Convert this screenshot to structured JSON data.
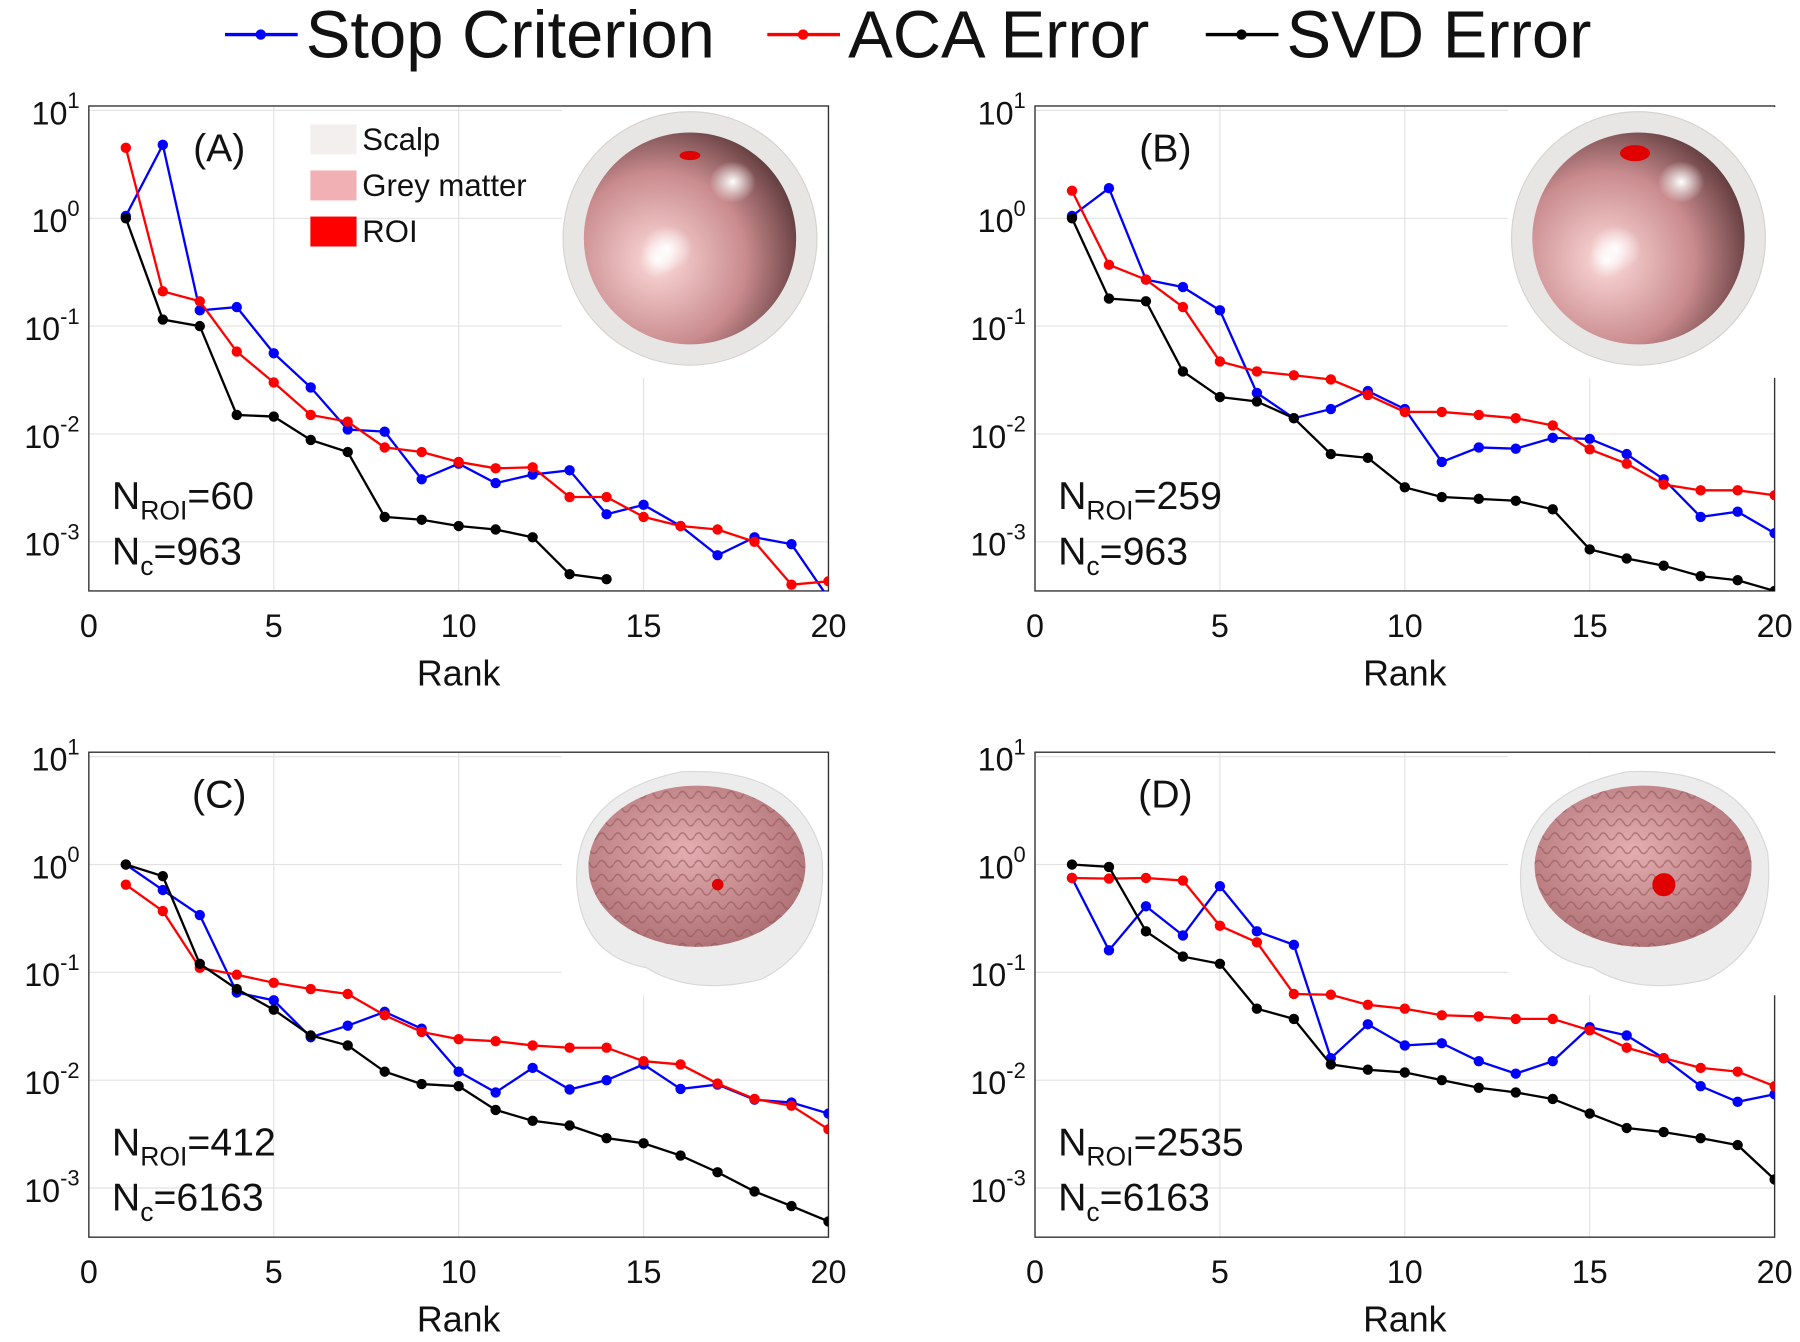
{
  "legend": [
    {
      "name": "Stop Criterion",
      "color": "#0000ff"
    },
    {
      "name": "ACA Error",
      "color": "#ff0000"
    },
    {
      "name": "SVD Error",
      "color": "#000000"
    }
  ],
  "chart_data": [
    {
      "type": "line",
      "log_y": true,
      "grid": true,
      "label": "(A)",
      "xlabel": "Rank",
      "n_roi": {
        "symbol": "N",
        "subscript": "ROI",
        "rest": "=60"
      },
      "n_c": {
        "symbol": "N",
        "subscript": "c",
        "rest": "=963"
      },
      "inset_legend": [
        {
          "name": "Scalp",
          "color": "#f2efee"
        },
        {
          "name": "Grey matter",
          "color": "#f0b0b4"
        },
        {
          "name": "ROI",
          "color": "#ff0000"
        }
      ],
      "x": [
        1,
        2,
        3,
        4,
        5,
        6,
        7,
        8,
        9,
        10,
        11,
        12,
        13,
        14,
        15,
        16,
        17,
        18,
        19,
        20
      ],
      "xlim": [
        0,
        20
      ],
      "xticks": [
        0,
        5,
        10,
        15,
        20
      ],
      "ylim": [
        0.00035,
        11
      ],
      "yticks": [
        {
          "value": 0.001,
          "label": "10",
          "exponent": "-3"
        },
        {
          "value": 0.01,
          "label": "10",
          "exponent": "-2"
        },
        {
          "value": 0.1,
          "label": "10",
          "exponent": "-1"
        },
        {
          "value": 1,
          "label": "10",
          "exponent": "0"
        },
        {
          "value": 10,
          "label": "10",
          "exponent": "1"
        }
      ],
      "series": [
        {
          "values": [
            1.05,
            4.8,
            0.14,
            0.15,
            0.056,
            0.027,
            0.011,
            0.0105,
            0.0038,
            0.0053,
            0.0035,
            0.0042,
            0.0046,
            0.0018,
            0.0022,
            0.0014,
            0.00075,
            0.0011,
            0.00095,
            0.0003
          ]
        },
        {
          "values": [
            4.5,
            0.21,
            0.17,
            0.058,
            0.03,
            0.015,
            0.013,
            0.0075,
            0.0068,
            0.0055,
            0.0048,
            0.0049,
            0.0026,
            0.0026,
            0.0017,
            0.0014,
            0.0013,
            0.001,
            0.0004,
            0.00043
          ]
        },
        {
          "values": [
            1.0,
            0.115,
            0.1,
            0.015,
            0.0145,
            0.0088,
            0.0068,
            0.0017,
            0.0016,
            0.0014,
            0.0013,
            0.0011,
            0.0005,
            0.00045,
            null,
            null,
            null,
            null,
            null,
            null
          ]
        }
      ]
    },
    {
      "type": "line",
      "log_y": true,
      "grid": true,
      "label": "(B)",
      "xlabel": "Rank",
      "n_roi": {
        "symbol": "N",
        "subscript": "ROI",
        "rest": "=259"
      },
      "n_c": {
        "symbol": "N",
        "subscript": "c",
        "rest": "=963"
      },
      "x": [
        1,
        2,
        3,
        4,
        5,
        6,
        7,
        8,
        9,
        10,
        11,
        12,
        13,
        14,
        15,
        16,
        17,
        18,
        19,
        20
      ],
      "xlim": [
        0,
        20
      ],
      "xticks": [
        0,
        5,
        10,
        15,
        20
      ],
      "ylim": [
        0.00035,
        11
      ],
      "yticks": [
        {
          "value": 0.001,
          "label": "10",
          "exponent": "-3"
        },
        {
          "value": 0.01,
          "label": "10",
          "exponent": "-2"
        },
        {
          "value": 0.1,
          "label": "10",
          "exponent": "-1"
        },
        {
          "value": 1,
          "label": "10",
          "exponent": "0"
        },
        {
          "value": 10,
          "label": "10",
          "exponent": "1"
        }
      ],
      "series": [
        {
          "values": [
            1.05,
            1.9,
            0.27,
            0.23,
            0.14,
            0.024,
            0.014,
            0.017,
            0.025,
            0.017,
            0.0055,
            0.0075,
            0.0073,
            0.0092,
            0.009,
            0.0065,
            0.0038,
            0.0017,
            0.0019,
            0.0012
          ]
        },
        {
          "values": [
            1.8,
            0.37,
            0.27,
            0.15,
            0.047,
            0.038,
            0.035,
            0.032,
            0.023,
            0.016,
            0.016,
            0.015,
            0.014,
            0.012,
            0.0072,
            0.0053,
            0.0034,
            0.003,
            0.003,
            0.0027
          ]
        },
        {
          "values": [
            1.0,
            0.18,
            0.17,
            0.038,
            0.022,
            0.02,
            0.014,
            0.0065,
            0.006,
            0.0032,
            0.0026,
            0.0025,
            0.0024,
            0.002,
            0.00085,
            0.0007,
            0.0006,
            0.00048,
            0.00044,
            0.00035
          ]
        }
      ]
    },
    {
      "type": "line",
      "log_y": true,
      "grid": true,
      "label": "(C)",
      "xlabel": "Rank",
      "n_roi": {
        "symbol": "N",
        "subscript": "ROI",
        "rest": "=412"
      },
      "n_c": {
        "symbol": "N",
        "subscript": "c",
        "rest": "=6163"
      },
      "x": [
        1,
        2,
        3,
        4,
        5,
        6,
        7,
        8,
        9,
        10,
        11,
        12,
        13,
        14,
        15,
        16,
        17,
        18,
        19,
        20
      ],
      "xlim": [
        0,
        20
      ],
      "xticks": [
        0,
        5,
        10,
        15,
        20
      ],
      "ylim": [
        0.00035,
        11
      ],
      "yticks": [
        {
          "value": 0.001,
          "label": "10",
          "exponent": "-3"
        },
        {
          "value": 0.01,
          "label": "10",
          "exponent": "-2"
        },
        {
          "value": 0.1,
          "label": "10",
          "exponent": "-1"
        },
        {
          "value": 1,
          "label": "10",
          "exponent": "0"
        },
        {
          "value": 10,
          "label": "10",
          "exponent": "1"
        }
      ],
      "series": [
        {
          "values": [
            1.0,
            0.58,
            0.34,
            0.065,
            0.055,
            0.025,
            0.032,
            0.043,
            0.03,
            0.012,
            0.0077,
            0.013,
            0.0082,
            0.01,
            0.014,
            0.0083,
            0.0091,
            0.0066,
            0.0062,
            0.0049
          ]
        },
        {
          "values": [
            0.65,
            0.37,
            0.11,
            0.095,
            0.08,
            0.07,
            0.063,
            0.04,
            0.028,
            0.024,
            0.023,
            0.021,
            0.02,
            0.02,
            0.015,
            0.014,
            0.0093,
            0.0067,
            0.0058,
            0.0035
          ]
        },
        {
          "values": [
            1.0,
            0.78,
            0.12,
            0.07,
            0.045,
            0.026,
            0.021,
            0.012,
            0.0092,
            0.0088,
            0.0053,
            0.0042,
            0.0038,
            0.0029,
            0.0026,
            0.002,
            0.0014,
            0.00093,
            0.00068,
            0.00049
          ]
        }
      ]
    },
    {
      "type": "line",
      "log_y": true,
      "grid": true,
      "label": "(D)",
      "xlabel": "Rank",
      "n_roi": {
        "symbol": "N",
        "subscript": "ROI",
        "rest": "=2535"
      },
      "n_c": {
        "symbol": "N",
        "subscript": "c",
        "rest": "=6163"
      },
      "x": [
        1,
        2,
        3,
        4,
        5,
        6,
        7,
        8,
        9,
        10,
        11,
        12,
        13,
        14,
        15,
        16,
        17,
        18,
        19,
        20
      ],
      "xlim": [
        0,
        20
      ],
      "xticks": [
        0,
        5,
        10,
        15,
        20
      ],
      "ylim": [
        0.00035,
        11
      ],
      "yticks": [
        {
          "value": 0.001,
          "label": "10",
          "exponent": "-3"
        },
        {
          "value": 0.01,
          "label": "10",
          "exponent": "-2"
        },
        {
          "value": 0.1,
          "label": "10",
          "exponent": "-1"
        },
        {
          "value": 1,
          "label": "10",
          "exponent": "0"
        },
        {
          "value": 10,
          "label": "10",
          "exponent": "1"
        }
      ],
      "series": [
        {
          "values": [
            0.75,
            0.16,
            0.41,
            0.22,
            0.63,
            0.24,
            0.18,
            0.016,
            0.033,
            0.021,
            0.022,
            0.015,
            0.0115,
            0.015,
            0.031,
            0.026,
            0.016,
            0.0088,
            0.0063,
            0.0074
          ]
        },
        {
          "values": [
            0.75,
            0.74,
            0.75,
            0.71,
            0.27,
            0.19,
            0.063,
            0.062,
            0.05,
            0.046,
            0.04,
            0.039,
            0.037,
            0.037,
            0.029,
            0.02,
            0.016,
            0.013,
            0.012,
            0.0088
          ]
        },
        {
          "values": [
            1.0,
            0.95,
            0.24,
            0.14,
            0.12,
            0.046,
            0.037,
            0.014,
            0.0125,
            0.0118,
            0.01,
            0.0085,
            0.0077,
            0.0067,
            0.0049,
            0.0036,
            0.0033,
            0.0029,
            0.0025,
            0.0012
          ]
        }
      ]
    }
  ]
}
